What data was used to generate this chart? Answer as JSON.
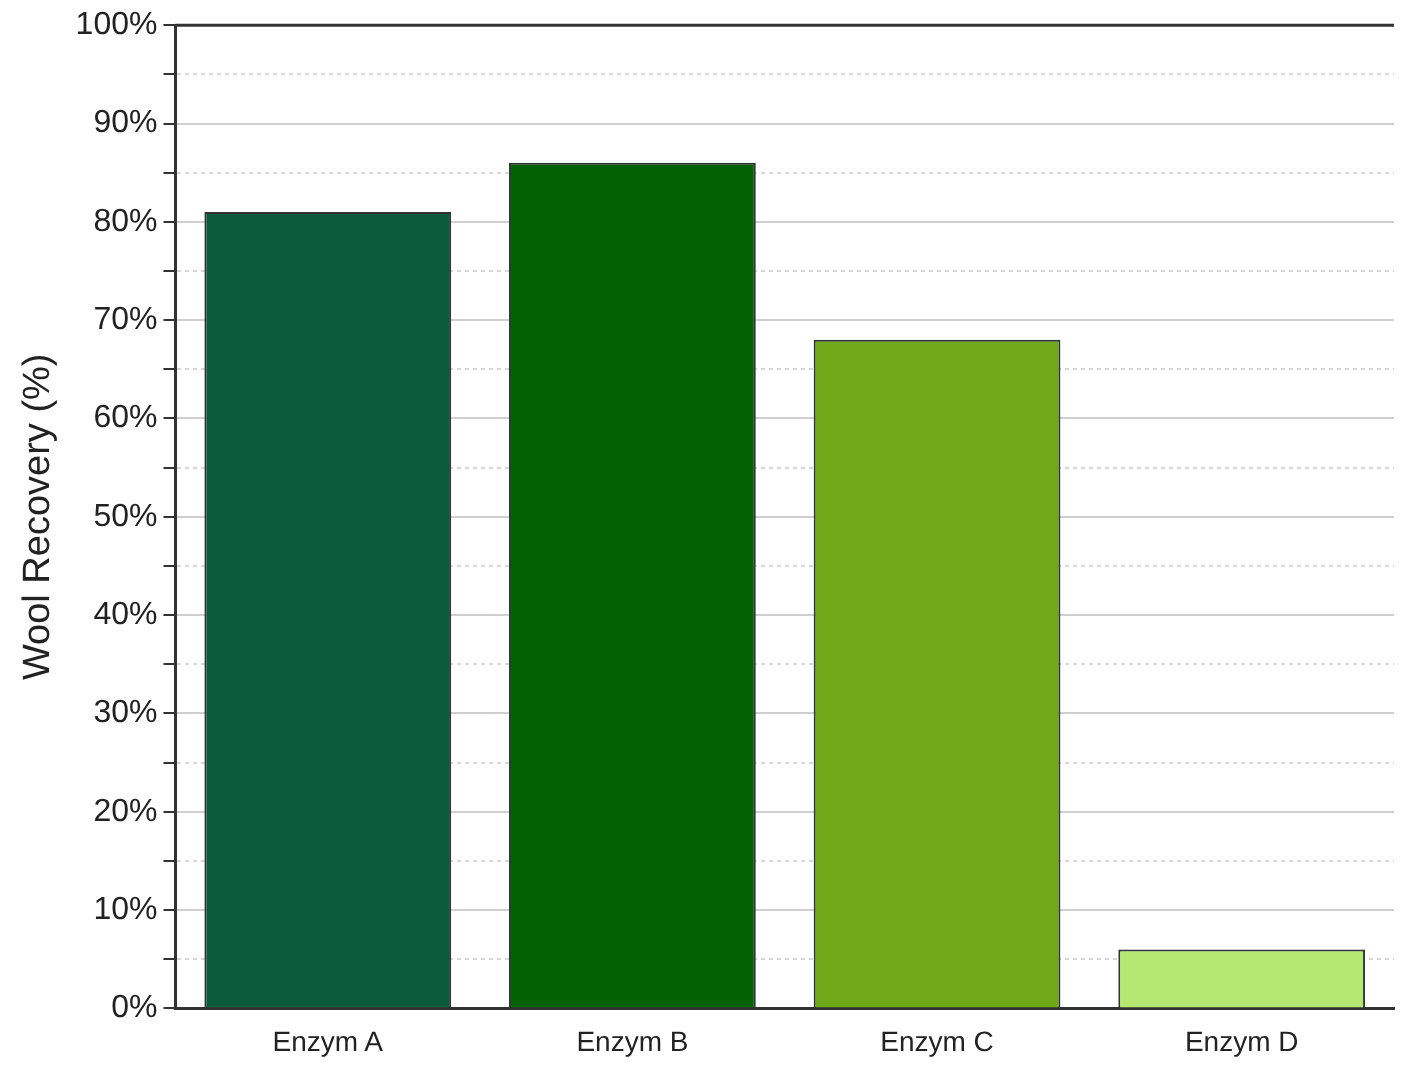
{
  "chart_data": {
    "type": "bar",
    "ylabel": "Wool Recovery (%)",
    "categories": [
      "Enzym A",
      "Enzym B",
      "Enzym C",
      "Enzym D"
    ],
    "values": [
      81,
      86,
      68,
      6
    ],
    "colors": [
      "#0a5a3e",
      "#036003",
      "#6fa818",
      "#b4e870"
    ],
    "ylim": [
      0,
      100
    ],
    "yticks": [
      {
        "value": 0,
        "label": "0%"
      },
      {
        "value": 5,
        "label": null
      },
      {
        "value": 10,
        "label": "10%"
      },
      {
        "value": 15,
        "label": null
      },
      {
        "value": 20,
        "label": "20%"
      },
      {
        "value": 25,
        "label": null
      },
      {
        "value": 30,
        "label": "30%"
      },
      {
        "value": 35,
        "label": null
      },
      {
        "value": 40,
        "label": "40%"
      },
      {
        "value": 45,
        "label": null
      },
      {
        "value": 50,
        "label": "50%"
      },
      {
        "value": 55,
        "label": null
      },
      {
        "value": 60,
        "label": "60%"
      },
      {
        "value": 65,
        "label": null
      },
      {
        "value": 70,
        "label": "70%"
      },
      {
        "value": 75,
        "label": null
      },
      {
        "value": 80,
        "label": "80%"
      },
      {
        "value": 85,
        "label": null
      },
      {
        "value": 90,
        "label": "90%"
      },
      {
        "value": 95,
        "label": null
      },
      {
        "value": 100,
        "label": "100%"
      }
    ],
    "grid": "y",
    "legend": false
  }
}
